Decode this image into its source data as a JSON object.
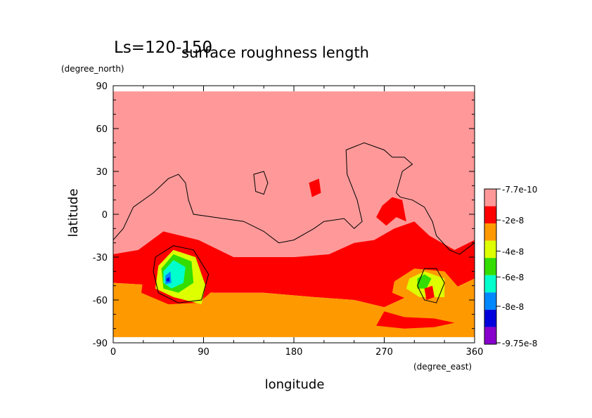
{
  "chart_data": {
    "type": "heatmap",
    "period_label": "Ls=120-150",
    "title": "surface roughness length",
    "xlabel": "longitude",
    "xunit": "(degree_east)",
    "ylabel": "latitude",
    "yunit": "(degree_north)",
    "xlim": [
      0,
      360
    ],
    "ylim": [
      -90,
      90
    ],
    "xticks": [
      0,
      90,
      180,
      270,
      360
    ],
    "yticks": [
      -90,
      -60,
      -30,
      0,
      30,
      60,
      90
    ],
    "grid": false,
    "legend_position": "right",
    "legend": {
      "levels": [
        "-7.7e-10",
        "-2e-8",
        "-4e-8",
        "-6e-8",
        "-8e-8",
        "-9.75e-8"
      ],
      "colors": [
        "#ff9999",
        "#ff0000",
        "#ff9900",
        "#ddff00",
        "#33dd00",
        "#00ffcc",
        "#0088ff",
        "#0000dd",
        "#8800cc"
      ]
    },
    "regions": [
      {
        "level_color": "#ff9999",
        "description_value": "-7.7e-10",
        "points": [
          [
            0,
            86
          ],
          [
            360,
            86
          ],
          [
            360,
            -18
          ],
          [
            340,
            -25
          ],
          [
            315,
            -15
          ],
          [
            300,
            -5
          ],
          [
            280,
            -10
          ],
          [
            260,
            -18
          ],
          [
            240,
            -20
          ],
          [
            215,
            -28
          ],
          [
            180,
            -30
          ],
          [
            120,
            -30
          ],
          [
            85,
            -18
          ],
          [
            50,
            -12
          ],
          [
            25,
            -25
          ],
          [
            0,
            -28
          ]
        ]
      },
      {
        "level_color": "#ff0000",
        "description_value": "-2e-8",
        "points": [
          [
            0,
            -28
          ],
          [
            25,
            -25
          ],
          [
            50,
            -12
          ],
          [
            85,
            -18
          ],
          [
            120,
            -30
          ],
          [
            180,
            -30
          ],
          [
            215,
            -28
          ],
          [
            240,
            -20
          ],
          [
            260,
            -18
          ],
          [
            280,
            -10
          ],
          [
            300,
            -5
          ],
          [
            315,
            -15
          ],
          [
            340,
            -25
          ],
          [
            360,
            -18
          ],
          [
            360,
            -45
          ],
          [
            330,
            -55
          ],
          [
            295,
            -57
          ],
          [
            270,
            -65
          ],
          [
            240,
            -60
          ],
          [
            200,
            -58
          ],
          [
            150,
            -55
          ],
          [
            100,
            -55
          ],
          [
            50,
            -50
          ],
          [
            0,
            -48
          ]
        ]
      },
      {
        "level_color": "#ff9900",
        "description_value": "-2e-8 to -4e-8",
        "points": [
          [
            0,
            -48
          ],
          [
            50,
            -50
          ],
          [
            100,
            -55
          ],
          [
            150,
            -55
          ],
          [
            200,
            -58
          ],
          [
            240,
            -60
          ],
          [
            270,
            -65
          ],
          [
            295,
            -57
          ],
          [
            330,
            -55
          ],
          [
            360,
            -45
          ],
          [
            360,
            -86
          ],
          [
            0,
            -86
          ]
        ]
      },
      {
        "level_color": "#ff0000",
        "description_value": "-2e-8",
        "points": [
          [
            268,
            6
          ],
          [
            278,
            12
          ],
          [
            288,
            10
          ],
          [
            292,
            -5
          ],
          [
            282,
            -2
          ],
          [
            272,
            -8
          ],
          [
            262,
            -2
          ]
        ]
      },
      {
        "level_color": "#ff0000",
        "description_value": "-2e-8",
        "points": [
          [
            195,
            22
          ],
          [
            205,
            25
          ],
          [
            207,
            15
          ],
          [
            198,
            12
          ]
        ]
      },
      {
        "level_color": "#ff0000",
        "description_value": "-2e-8",
        "points": [
          [
            270,
            -68
          ],
          [
            290,
            -72
          ],
          [
            320,
            -73
          ],
          [
            340,
            -76
          ],
          [
            320,
            -79
          ],
          [
            290,
            -80
          ],
          [
            262,
            -78
          ]
        ]
      },
      {
        "level_color": "#ff0000",
        "description_value": "-2e-8",
        "points": [
          [
            30,
            -45
          ],
          [
            45,
            -22
          ],
          [
            72,
            -18
          ],
          [
            100,
            -30
          ],
          [
            105,
            -50
          ],
          [
            85,
            -62
          ],
          [
            55,
            -63
          ],
          [
            28,
            -55
          ]
        ]
      },
      {
        "level_color": "#ddff00",
        "description_value": "-4e-8",
        "points": [
          [
            45,
            -36
          ],
          [
            60,
            -25
          ],
          [
            82,
            -30
          ],
          [
            92,
            -50
          ],
          [
            88,
            -63
          ],
          [
            60,
            -58
          ],
          [
            42,
            -52
          ]
        ]
      },
      {
        "level_color": "#33dd00",
        "description_value": "-6e-8",
        "points": [
          [
            48,
            -38
          ],
          [
            60,
            -28
          ],
          [
            78,
            -33
          ],
          [
            80,
            -48
          ],
          [
            65,
            -55
          ],
          [
            50,
            -52
          ]
        ]
      },
      {
        "level_color": "#00ffcc",
        "description_value": "-6e-8 to -8e-8",
        "points": [
          [
            50,
            -40
          ],
          [
            60,
            -32
          ],
          [
            72,
            -37
          ],
          [
            70,
            -48
          ],
          [
            58,
            -52
          ],
          [
            50,
            -48
          ]
        ]
      },
      {
        "level_color": "#0088ff",
        "description_value": "-8e-8",
        "points": [
          [
            52,
            -43
          ],
          [
            57,
            -40
          ],
          [
            58,
            -48
          ],
          [
            52,
            -49
          ]
        ]
      },
      {
        "level_color": "#0000dd",
        "description_value": "-9.75e-8",
        "points": [
          [
            53,
            -45
          ],
          [
            56,
            -44
          ],
          [
            56,
            -47
          ],
          [
            53,
            -47
          ]
        ]
      },
      {
        "level_color": "#ff9900",
        "description_value": "-2e-8 to -4e-8",
        "points": [
          [
            280,
            -47
          ],
          [
            300,
            -38
          ],
          [
            330,
            -40
          ],
          [
            345,
            -52
          ],
          [
            328,
            -62
          ],
          [
            295,
            -60
          ],
          [
            278,
            -55
          ]
        ]
      },
      {
        "level_color": "#ddff00",
        "description_value": "-4e-8",
        "points": [
          [
            295,
            -45
          ],
          [
            310,
            -40
          ],
          [
            330,
            -45
          ],
          [
            330,
            -58
          ],
          [
            305,
            -58
          ],
          [
            292,
            -52
          ]
        ]
      },
      {
        "level_color": "#33dd00",
        "description_value": "-6e-8",
        "points": [
          [
            303,
            -45
          ],
          [
            310,
            -42
          ],
          [
            317,
            -45
          ],
          [
            312,
            -52
          ],
          [
            303,
            -52
          ]
        ]
      },
      {
        "level_color": "#ff0000",
        "description_value": "-2e-8",
        "points": [
          [
            310,
            -52
          ],
          [
            318,
            -50
          ],
          [
            320,
            -58
          ],
          [
            312,
            -60
          ]
        ]
      }
    ],
    "contours": [
      {
        "name": "zero-elevation-contour",
        "points": [
          [
            0,
            -18
          ],
          [
            10,
            -10
          ],
          [
            20,
            5
          ],
          [
            40,
            15
          ],
          [
            55,
            25
          ],
          [
            65,
            28
          ],
          [
            72,
            22
          ],
          [
            75,
            10
          ],
          [
            80,
            0
          ],
          [
            100,
            -2
          ],
          [
            130,
            -5
          ],
          [
            150,
            -12
          ],
          [
            165,
            -20
          ],
          [
            180,
            -18
          ],
          [
            200,
            -10
          ],
          [
            210,
            -5
          ],
          [
            230,
            -3
          ],
          [
            240,
            -10
          ],
          [
            248,
            -5
          ],
          [
            243,
            10
          ],
          [
            233,
            28
          ],
          [
            232,
            45
          ],
          [
            250,
            50
          ],
          [
            270,
            45
          ],
          [
            278,
            40
          ],
          [
            290,
            40
          ],
          [
            298,
            35
          ],
          [
            288,
            30
          ],
          [
            282,
            15
          ],
          [
            286,
            12
          ],
          [
            298,
            10
          ],
          [
            310,
            5
          ],
          [
            318,
            -5
          ],
          [
            322,
            -15
          ],
          [
            335,
            -25
          ],
          [
            345,
            -28
          ],
          [
            360,
            -20
          ]
        ]
      },
      {
        "name": "small-contour",
        "points": [
          [
            140,
            28
          ],
          [
            150,
            30
          ],
          [
            154,
            22
          ],
          [
            150,
            14
          ],
          [
            142,
            16
          ]
        ]
      },
      {
        "name": "crater-contour-hellas",
        "points": [
          [
            42,
            -30
          ],
          [
            60,
            -22
          ],
          [
            80,
            -25
          ],
          [
            95,
            -42
          ],
          [
            88,
            -60
          ],
          [
            65,
            -62
          ],
          [
            45,
            -55
          ],
          [
            40,
            -40
          ]
        ]
      },
      {
        "name": "crater-contour-argyre",
        "points": [
          [
            303,
            -50
          ],
          [
            310,
            -38
          ],
          [
            322,
            -38
          ],
          [
            330,
            -48
          ],
          [
            322,
            -62
          ],
          [
            310,
            -60
          ]
        ]
      }
    ]
  }
}
